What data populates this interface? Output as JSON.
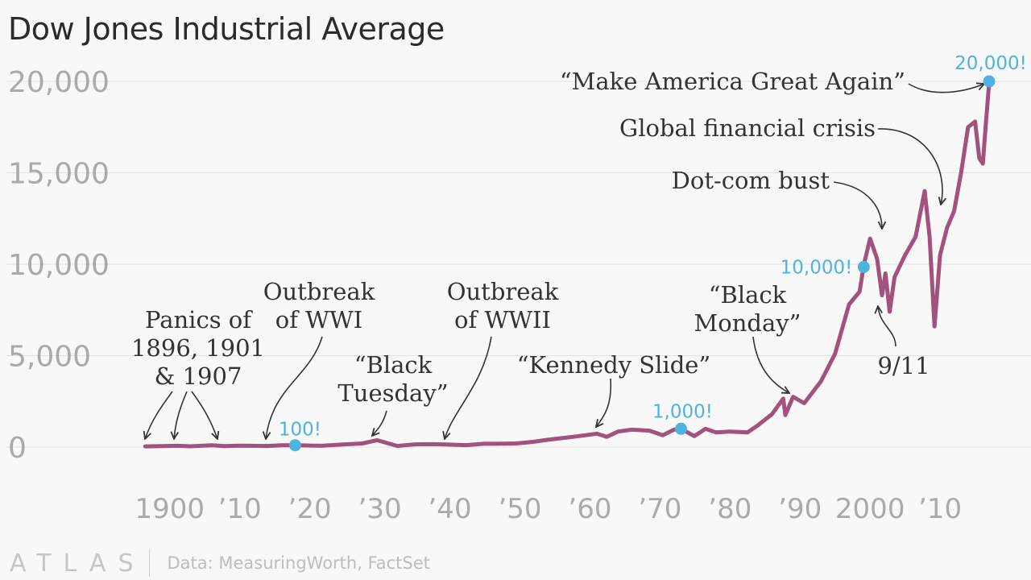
{
  "header": {
    "title": "Dow Jones Industrial Average"
  },
  "footer": {
    "brand": "ATLAS",
    "source": "Data: MeasuringWorth, FactSet"
  },
  "colors": {
    "line": "#a2527c",
    "milestone": "#4fb3e0",
    "text": "#333333",
    "axis": "#aaaaaa"
  },
  "chart_data": {
    "type": "line",
    "title": "Dow Jones Industrial Average",
    "xlabel": "",
    "ylabel": "",
    "xlim": [
      1896,
      2017
    ],
    "ylim": [
      0,
      20000
    ],
    "grid": true,
    "y_ticks": [
      {
        "value": 0,
        "label": "0"
      },
      {
        "value": 5000,
        "label": "5,000"
      },
      {
        "value": 10000,
        "label": "10,000"
      },
      {
        "value": 15000,
        "label": "15,000"
      },
      {
        "value": 20000,
        "label": "20,000"
      }
    ],
    "x_ticks": [
      {
        "value": 1900,
        "label": "1900"
      },
      {
        "value": 1910,
        "label": "’10"
      },
      {
        "value": 1920,
        "label": "’20"
      },
      {
        "value": 1930,
        "label": "’30"
      },
      {
        "value": 1940,
        "label": "’40"
      },
      {
        "value": 1950,
        "label": "’50"
      },
      {
        "value": 1960,
        "label": "’60"
      },
      {
        "value": 1970,
        "label": "’70"
      },
      {
        "value": 1980,
        "label": "’80"
      },
      {
        "value": 1990,
        "label": "’90"
      },
      {
        "value": 2000,
        "label": "2000"
      },
      {
        "value": 2010,
        "label": "’10"
      }
    ],
    "series": [
      {
        "x": [
          1896.5,
          1899,
          1901,
          1903,
          1906,
          1907.8,
          1910,
          1914,
          1916,
          1917.9,
          1920,
          1921.6,
          1925,
          1927.5,
          1929.6,
          1932.5,
          1935,
          1937,
          1939,
          1942.3,
          1945,
          1946.5,
          1949.5,
          1952,
          1954,
          1956,
          1958,
          1961,
          1962.4,
          1964,
          1966,
          1968.5,
          1970.4,
          1972,
          1973,
          1974.9,
          1976.5,
          1978,
          1980,
          1982.5,
          1984,
          1986,
          1987.6,
          1987.9,
          1989,
          1990.6,
          1993,
          1995,
          1997,
          1998.5,
          1999.1,
          2000,
          2001,
          2001.7,
          2002.2,
          2002.8,
          2003.5,
          2005,
          2006.5,
          2007.8,
          2008.5,
          2009.2,
          2010,
          2011,
          2012,
          2013,
          2014,
          2015,
          2015.6,
          2016.1,
          2016.6,
          2017
        ],
        "y": [
          40,
          55,
          70,
          45,
          95,
          55,
          80,
          60,
          95,
          100,
          85,
          70,
          150,
          200,
          380,
          60,
          150,
          160,
          150,
          105,
          190,
          180,
          200,
          290,
          400,
          490,
          580,
          730,
          560,
          850,
          950,
          900,
          650,
          950,
          1000,
          600,
          1000,
          800,
          850,
          800,
          1200,
          1800,
          2650,
          1750,
          2750,
          2400,
          3600,
          5100,
          7800,
          8500,
          9950,
          11400,
          10300,
          8300,
          9500,
          7400,
          9300,
          10500,
          11500,
          14000,
          11500,
          6600,
          10500,
          12000,
          12900,
          15000,
          17500,
          17800,
          15800,
          15500,
          18000,
          19900
        ]
      }
    ],
    "milestones": [
      {
        "x": 1917.9,
        "y": 100,
        "label": "100!"
      },
      {
        "x": 1973,
        "y": 1000,
        "label": "1,000!"
      },
      {
        "x": 1999.1,
        "y": 9850,
        "label": "10,000!"
      },
      {
        "x": 2017,
        "y": 20000,
        "label": "20,000!"
      }
    ],
    "annotations": [
      {
        "lines": [
          "Panics of",
          "1896, 1901",
          "& 1907"
        ]
      },
      {
        "lines": [
          "Outbreak",
          "of WWI"
        ]
      },
      {
        "lines": [
          "“Black",
          "Tuesday”"
        ]
      },
      {
        "lines": [
          "Outbreak",
          "of WWII"
        ]
      },
      {
        "lines": [
          "“Kennedy Slide”"
        ]
      },
      {
        "lines": [
          "“Black",
          "Monday”"
        ]
      },
      {
        "lines": [
          "Dot-com bust"
        ]
      },
      {
        "lines": [
          "9/11"
        ]
      },
      {
        "lines": [
          "Global financial crisis"
        ]
      },
      {
        "lines": [
          "“Make America Great Again”"
        ]
      }
    ]
  }
}
